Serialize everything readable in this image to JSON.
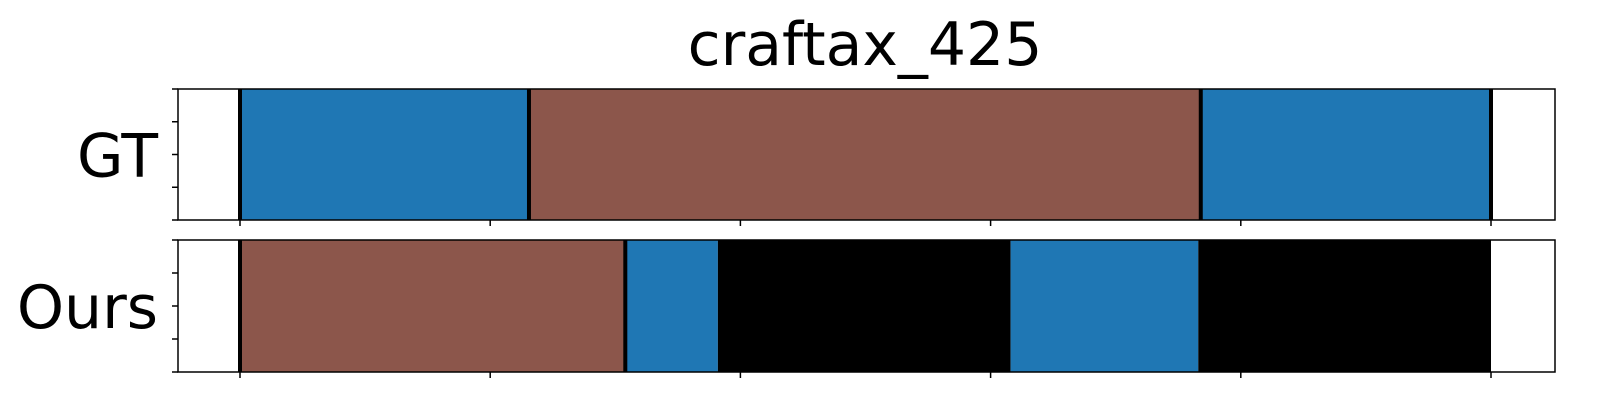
{
  "chart_data": {
    "type": "timeline",
    "title": "craftax_425",
    "xlim": [
      0,
      500
    ],
    "x_ticks": [
      0,
      100,
      200,
      300,
      400,
      500
    ],
    "y_tick_count": 5,
    "boundary_color": "#000000",
    "rows": [
      {
        "label": "GT",
        "boundaries": [
          0,
          115.5,
          384,
          500
        ],
        "segments": [
          {
            "start": 0,
            "end": 115.5,
            "color": "#1f77b4"
          },
          {
            "start": 115.5,
            "end": 384,
            "color": "#8c564b"
          },
          {
            "start": 384,
            "end": 500,
            "color": "#1f77b4"
          }
        ]
      },
      {
        "label": "Ours",
        "boundaries": [
          0,
          154
        ],
        "segments": [
          {
            "start": 0,
            "end": 154,
            "color": "#8c564b"
          },
          {
            "start": 154,
            "end": 191,
            "color": "#1f77b4"
          },
          {
            "start": 191,
            "end": 308,
            "color": "#000000"
          },
          {
            "start": 308,
            "end": 383,
            "color": "#1f77b4"
          },
          {
            "start": 383,
            "end": 500,
            "color": "#000000"
          }
        ]
      }
    ]
  }
}
